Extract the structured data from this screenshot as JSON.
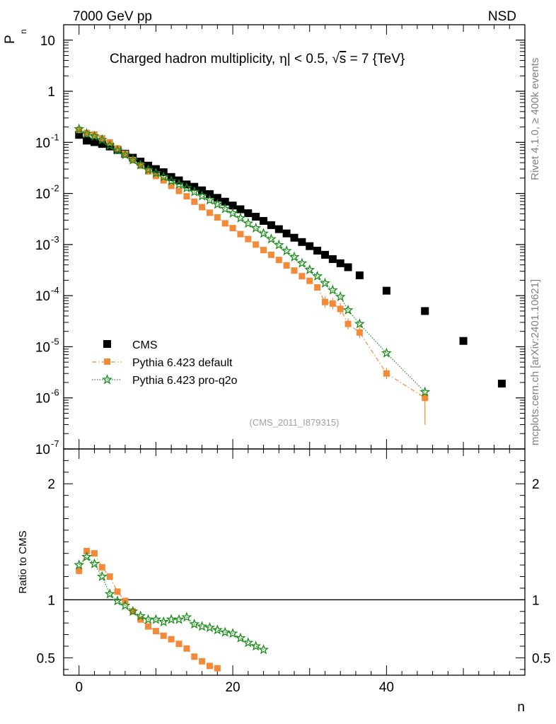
{
  "header": {
    "left": "7000 GeV pp",
    "right": "NSD"
  },
  "side": {
    "rivet": "Rivet 4.1.0, ≥ 400k events",
    "mcplots": "mcplots.cern.ch [arXiv:2401.10621]"
  },
  "chart_data": [
    {
      "type": "scatter",
      "title": "Charged hadron multiplicity, |η| < 0.5, √s = 7 {TeV}",
      "title_parts": {
        "a": "Charged hadron multiplicity,",
        "eta": "η",
        "b": "| < 0.5,",
        "root": "√",
        "s": "s",
        "c": "= 7 {TeV}"
      },
      "ylabel": "P",
      "ylabel_sub": "n",
      "yscale": "log",
      "ylim": [
        1e-07,
        20
      ],
      "xlim": [
        -2,
        58
      ],
      "y_ticks": [
        {
          "m": "10",
          "e": "-7",
          "v": 1e-07
        },
        {
          "m": "10",
          "e": "-6",
          "v": 1e-06
        },
        {
          "m": "10",
          "e": "-5",
          "v": 1e-05
        },
        {
          "m": "10",
          "e": "-4",
          "v": 0.0001
        },
        {
          "m": "10",
          "e": "-3",
          "v": 0.001
        },
        {
          "m": "10",
          "e": "-2",
          "v": 0.01
        },
        {
          "m": "10",
          "e": "-1",
          "v": 0.1
        },
        {
          "m": "1",
          "e": "",
          "v": 1
        },
        {
          "m": "10",
          "e": "",
          "v": 10
        }
      ],
      "watermark": "(CMS_2011_I879315)",
      "legend": [
        "CMS",
        "Pythia 6.423 default",
        "Pythia 6.423 pro-q2o"
      ],
      "series": [
        {
          "name": "CMS",
          "color": "#000000",
          "marker": "square",
          "x": [
            0,
            1,
            2,
            3,
            4,
            5,
            6,
            7,
            8,
            9,
            10,
            11,
            12,
            13,
            14,
            15,
            16,
            17,
            18,
            19,
            20,
            21,
            22,
            23,
            24,
            25,
            26,
            27,
            28,
            29,
            30,
            31,
            32,
            33,
            34,
            35,
            36.5,
            40,
            45,
            50,
            55
          ],
          "y": [
            0.14,
            0.108,
            0.101,
            0.093,
            0.083,
            0.071,
            0.06,
            0.05,
            0.042,
            0.035,
            0.03,
            0.026,
            0.021,
            0.018,
            0.015,
            0.0135,
            0.0115,
            0.0097,
            0.0082,
            0.0069,
            0.0058,
            0.0049,
            0.0041,
            0.0035,
            0.0029,
            0.0024,
            0.002,
            0.00165,
            0.00136,
            0.00112,
            0.00093,
            0.00076,
            0.00063,
            0.00052,
            0.00043,
            0.00036,
            0.00025,
            0.000125,
            5e-05,
            1.3e-05,
            1.9e-06
          ]
        },
        {
          "name": "Pythia 6.423 default",
          "color": "#f28a3a",
          "marker": "square",
          "x": [
            0,
            1,
            2,
            3,
            4,
            5,
            6,
            7,
            8,
            9,
            10,
            11,
            12,
            13,
            14,
            15,
            16,
            17,
            18,
            19,
            20,
            21,
            22,
            23,
            24,
            25,
            26,
            27,
            28,
            29,
            30,
            31,
            32,
            33,
            34,
            35,
            36.5,
            40,
            45
          ],
          "y": [
            0.175,
            0.153,
            0.142,
            0.12,
            0.1,
            0.076,
            0.06,
            0.045,
            0.035,
            0.027,
            0.022,
            0.018,
            0.014,
            0.0112,
            0.0088,
            0.0069,
            0.0054,
            0.0042,
            0.0034,
            0.0026,
            0.0021,
            0.0016,
            0.00128,
            0.001,
            0.00078,
            0.00063,
            0.0005,
            0.00039,
            0.00031,
            0.00024,
            0.000195,
            0.000145,
            7.5e-05,
            7e-05,
            5.5e-05,
            2.8e-05,
            1.9e-05,
            3e-06,
            1e-06
          ]
        },
        {
          "name": "Pythia 6.423 pro-q2o",
          "color": "#1a8c1a",
          "marker": "star",
          "x": [
            0,
            1,
            2,
            3,
            4,
            5,
            6,
            7,
            8,
            9,
            10,
            11,
            12,
            13,
            14,
            15,
            16,
            17,
            18,
            19,
            20,
            21,
            22,
            23,
            24,
            25,
            26,
            27,
            28,
            29,
            30,
            31,
            32,
            33,
            34,
            35,
            36.5,
            40,
            45
          ],
          "y": [
            0.182,
            0.148,
            0.132,
            0.112,
            0.087,
            0.07,
            0.057,
            0.045,
            0.036,
            0.029,
            0.025,
            0.021,
            0.0175,
            0.015,
            0.0128,
            0.0107,
            0.0089,
            0.0074,
            0.0061,
            0.005,
            0.0041,
            0.0033,
            0.0026,
            0.0021,
            0.00165,
            0.00128,
            0.00098,
            0.00075,
            0.00057,
            0.00043,
            0.00032,
            0.00024,
            0.000175,
            0.000128,
            9.5e-05,
            5.2e-05,
            2.8e-05,
            7.5e-06,
            1.3e-06
          ]
        }
      ]
    },
    {
      "type": "scatter",
      "ylabel": "Ratio to CMS",
      "xlabel": "n",
      "ylim": [
        0.35,
        2.3
      ],
      "xlim": [
        -2,
        58
      ],
      "y_ticks": [
        {
          "label": "0.5",
          "v": 0.5
        },
        {
          "label": "1",
          "v": 1
        },
        {
          "label": "2",
          "v": 2
        }
      ],
      "x_ticks": [
        {
          "label": "0",
          "v": 0
        },
        {
          "label": "20",
          "v": 20
        },
        {
          "label": "40",
          "v": 40
        }
      ],
      "reference_line": 1,
      "series": [
        {
          "name": "Pythia 6.423 default",
          "color": "#f28a3a",
          "marker": "square",
          "x": [
            0,
            1,
            2,
            3,
            4,
            5,
            6,
            7,
            8,
            9,
            10,
            11,
            12,
            13,
            14,
            15,
            16,
            17,
            18
          ],
          "y": [
            1.25,
            1.42,
            1.4,
            1.28,
            1.2,
            1.07,
            0.99,
            0.9,
            0.83,
            0.77,
            0.73,
            0.69,
            0.66,
            0.62,
            0.58,
            0.51,
            0.47,
            0.43,
            0.41
          ]
        },
        {
          "name": "Pythia 6.423 pro-q2o",
          "color": "#1a8c1a",
          "marker": "star",
          "x": [
            0,
            1,
            2,
            3,
            4,
            5,
            6,
            7,
            8,
            9,
            10,
            11,
            12,
            13,
            14,
            15,
            16,
            17,
            18,
            19,
            20,
            21,
            22,
            23,
            24
          ],
          "y": [
            1.3,
            1.37,
            1.31,
            1.2,
            1.05,
            0.99,
            0.95,
            0.9,
            0.86,
            0.83,
            0.83,
            0.81,
            0.83,
            0.83,
            0.85,
            0.79,
            0.77,
            0.76,
            0.74,
            0.72,
            0.71,
            0.67,
            0.63,
            0.6,
            0.57
          ]
        }
      ]
    }
  ]
}
